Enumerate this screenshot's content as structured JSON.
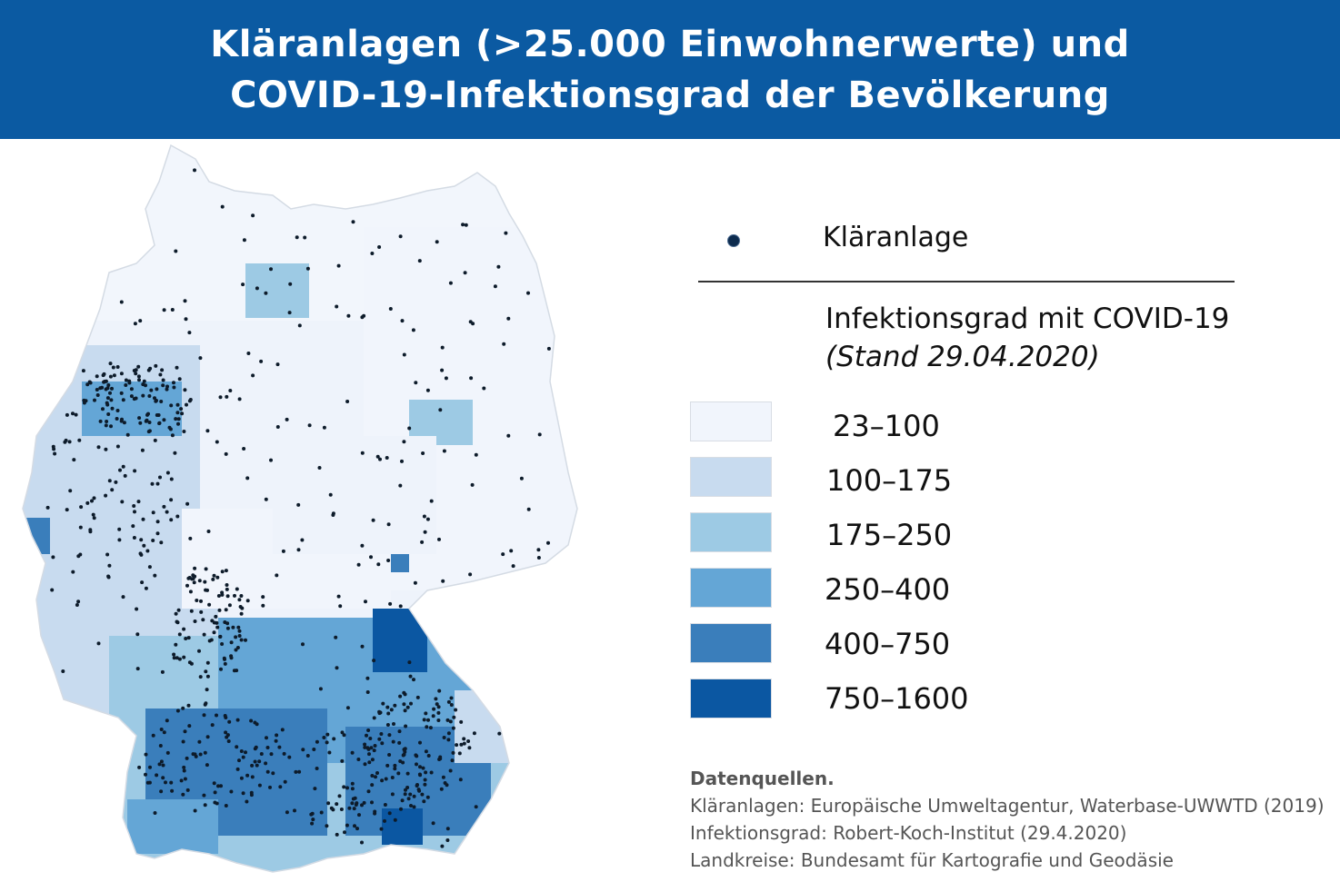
{
  "header": {
    "title_line1": "Kläranlagen (>25.000 Einwohnerwerte) und",
    "title_line2": "COVID-19-Infektionsgrad der Bevölkerung",
    "bg_color": "#0b5aa2"
  },
  "legend": {
    "dot_label": "Kläranlage",
    "dot_color": "#0d2b4e",
    "title": "Infektionsgrad mit COVID-19",
    "subtitle": "(Stand 29.04.2020)",
    "classes": [
      {
        "label": "23–100",
        "color": "#f1f5fc"
      },
      {
        "label": "100–175",
        "color": "#c8dbef"
      },
      {
        "label": "175–250",
        "color": "#9dcae4"
      },
      {
        "label": "250–400",
        "color": "#64a6d6"
      },
      {
        "label": "400–750",
        "color": "#3a7ebb"
      },
      {
        "label": "750–1600",
        "color": "#0b57a2"
      }
    ]
  },
  "sources": {
    "heading": "Datenquellen.",
    "line1": "Kläranlagen: Europäische Umweltagentur, Waterbase-UWWTD (2019)",
    "line2": "Infektionsgrad: Robert-Koch-Institut (29.4.2020)",
    "line3": "Landkreise: Bundesamt für Kartografie und Geodäsie"
  }
}
